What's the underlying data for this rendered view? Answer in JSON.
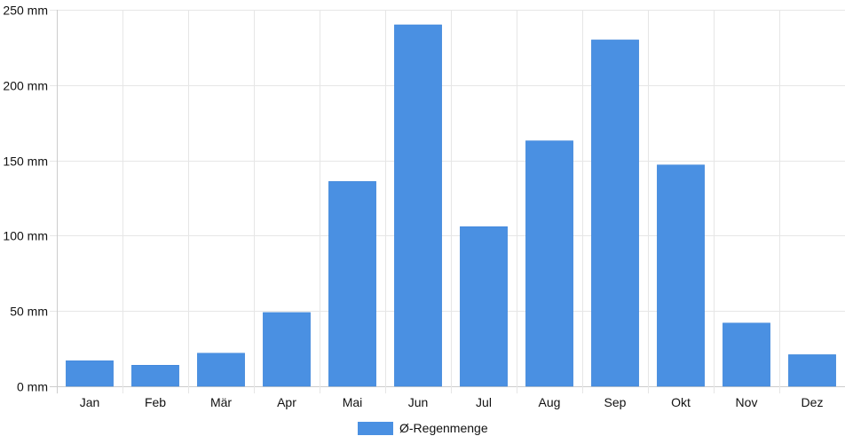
{
  "chart_data": {
    "type": "bar",
    "categories": [
      "Jan",
      "Feb",
      "Mär",
      "Apr",
      "Mai",
      "Jun",
      "Jul",
      "Aug",
      "Sep",
      "Okt",
      "Nov",
      "Dez"
    ],
    "series": [
      {
        "name": "Ø-Regenmenge",
        "color": "#4a90e2",
        "values": [
          17,
          14,
          22,
          49,
          136,
          240,
          106,
          163,
          230,
          147,
          42,
          21
        ]
      }
    ],
    "ylim": [
      0,
      250
    ],
    "yticks": [
      0,
      50,
      100,
      150,
      200,
      250
    ],
    "y_unit": "mm",
    "grid": true,
    "legend_position": "bottom",
    "title": "",
    "xlabel": "",
    "ylabel": ""
  }
}
